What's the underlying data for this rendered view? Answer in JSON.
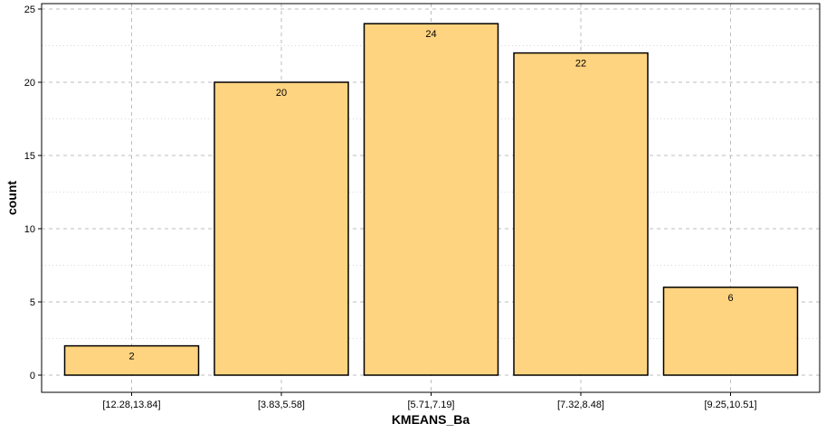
{
  "chart_data": {
    "type": "bar",
    "title": "",
    "xlabel": "KMEANS_Ba",
    "ylabel": "count",
    "categories": [
      "[12.28,13.84]",
      "[3.83,5.58]",
      "[5.71,7.19]",
      "[7.32,8.48]",
      "[9.25,10.51]"
    ],
    "values": [
      2,
      20,
      24,
      22,
      6
    ],
    "data_labels": [
      "2",
      "20",
      "24",
      "22",
      "6"
    ],
    "ylim": [
      0,
      25
    ],
    "yticks": [
      0,
      5,
      10,
      15,
      20,
      25
    ],
    "ytick_labels": [
      "0",
      "5",
      "10",
      "15",
      "20",
      "25"
    ],
    "grid": "major dashed, minor dotted",
    "legend": "none",
    "colors": {
      "bar_fill": "#FFD480",
      "bar_stroke": "#000000",
      "grid_major": "#bdbdbd",
      "grid_minor": "#d9d9d9",
      "panel_border": "#000000"
    }
  }
}
